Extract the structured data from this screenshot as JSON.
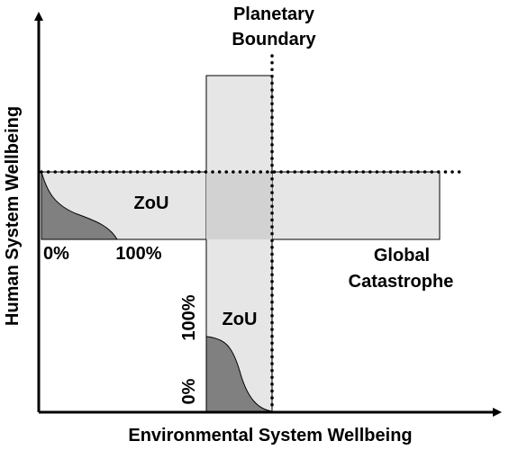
{
  "axes": {
    "x_label": "Environmental System Wellbeing",
    "y_label": "Human System Wellbeing"
  },
  "labels": {
    "planetary_boundary_line1": "Planetary",
    "planetary_boundary_line2": "Boundary",
    "global_catastrophe_line1": "Global",
    "global_catastrophe_line2": "Catastrophe",
    "zou_horizontal": "ZoU",
    "zou_vertical": "ZoU",
    "h_scale_0": "0%",
    "h_scale_100": "100%",
    "v_scale_0": "0%",
    "v_scale_100": "100%"
  },
  "colors": {
    "band_fill": "#e6e6e6",
    "overlap_fill": "#d2d2d2",
    "curve_fill": "#808080",
    "stroke": "#000000"
  }
}
